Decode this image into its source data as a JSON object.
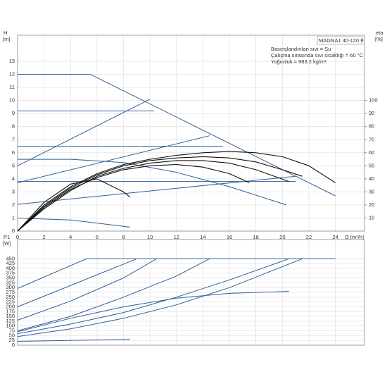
{
  "chart_data": [
    {
      "type": "line",
      "title": "MAGNA1 40-120 F",
      "annotations": [
        "Basınçlandırılan sıvı = Su",
        "Çalışma sırasında sıvı sıcaklığı = 60 °C",
        "Yoğunluk = 983.2 kg/m³"
      ],
      "x_label": "Q [m³/h]",
      "y_label": "H",
      "y_unit": "[m]",
      "y2_label": "eta",
      "y2_unit": "[%]",
      "xlim": [
        0,
        26.2
      ],
      "xticks": [
        0,
        2,
        4,
        6,
        8,
        10,
        12,
        14,
        16,
        18,
        20,
        22,
        24
      ],
      "ylim": [
        0,
        15
      ],
      "yticks": [
        0,
        1,
        2,
        3,
        4,
        5,
        6,
        7,
        8,
        9,
        10,
        11,
        12,
        13
      ],
      "y2lim": [
        0,
        150
      ],
      "y2ticks": [
        10,
        20,
        30,
        40,
        50,
        60,
        70,
        80,
        90,
        100
      ],
      "grid": true,
      "series": [
        {
          "color": "#2f5f9a",
          "x": [
            0,
            5.5,
            24
          ],
          "values": [
            12,
            12,
            2.7
          ]
        },
        {
          "color": "#2f5f9a",
          "x": [
            0,
            10
          ],
          "values": [
            5,
            10.1
          ]
        },
        {
          "color": "#2f5f9a",
          "x": [
            0,
            14.5
          ],
          "values": [
            3.7,
            7.3
          ]
        },
        {
          "color": "#2f5f9a",
          "x": [
            0,
            10.3
          ],
          "values": [
            9.2,
            9.2
          ]
        },
        {
          "color": "#2f5f9a",
          "x": [
            0,
            15.5
          ],
          "values": [
            6.5,
            6.5
          ]
        },
        {
          "color": "#2f5f9a",
          "x": [
            0,
            21
          ],
          "values": [
            3.8,
            3.8
          ]
        },
        {
          "color": "#2f5f9a",
          "x": [
            0,
            21
          ],
          "values": [
            2.05,
            4.2
          ]
        },
        {
          "color": "#2f5f9a",
          "x": [
            0,
            4,
            8,
            12,
            16,
            20.3
          ],
          "values": [
            5.5,
            5.5,
            5.25,
            4.5,
            3.4,
            2
          ]
        },
        {
          "color": "#2f5f9a",
          "x": [
            0,
            4,
            8.5
          ],
          "values": [
            1,
            0.85,
            0.3
          ]
        },
        {
          "color": "#111111",
          "axis": "y2",
          "x": [
            0,
            2,
            4,
            6,
            8,
            10,
            12,
            14,
            16,
            18,
            20,
            22,
            24
          ],
          "values": [
            0,
            20,
            34,
            44,
            51,
            55,
            58,
            60,
            61,
            60,
            57,
            50,
            37
          ]
        },
        {
          "color": "#111111",
          "axis": "y2",
          "x": [
            0,
            2,
            4,
            6,
            8,
            10,
            12,
            14,
            16,
            18,
            20,
            21.5
          ],
          "values": [
            0,
            19,
            33,
            43,
            50,
            54,
            56,
            57,
            56,
            53,
            47,
            42
          ]
        },
        {
          "color": "#111111",
          "axis": "y2",
          "x": [
            0,
            2,
            4,
            6,
            8,
            10,
            12,
            14,
            16,
            18,
            20.5
          ],
          "values": [
            0,
            17,
            31,
            42,
            48,
            52,
            54,
            54,
            52,
            47,
            38
          ]
        },
        {
          "color": "#111111",
          "axis": "y2",
          "x": [
            0,
            2,
            4,
            6,
            8,
            10,
            12,
            14,
            16,
            17.5
          ],
          "values": [
            0,
            18,
            32,
            41,
            47,
            50,
            51,
            49,
            44,
            37
          ]
        },
        {
          "color": "#111111",
          "axis": "y2",
          "x": [
            0,
            2,
            4,
            6,
            8,
            8.5
          ],
          "values": [
            0,
            22,
            36,
            40,
            30,
            26
          ]
        }
      ]
    },
    {
      "type": "line",
      "y_label": "P1",
      "y_unit": "[W]",
      "xlim": [
        0,
        26.2
      ],
      "xticks": [
        0,
        2,
        4,
        6,
        8,
        10,
        12,
        14,
        16,
        18,
        20,
        22,
        24
      ],
      "ylim": [
        0,
        550
      ],
      "yticks": [
        0,
        25,
        50,
        75,
        100,
        125,
        150,
        175,
        200,
        225,
        250,
        275,
        300,
        325,
        350,
        375,
        400,
        425,
        450
      ],
      "grid": true,
      "series": [
        {
          "color": "#2f5f9a",
          "x": [
            0,
            5.2,
            24
          ],
          "values": [
            295,
            450,
            450
          ]
        },
        {
          "color": "#2f5f9a",
          "x": [
            0,
            9
          ],
          "values": [
            200,
            450
          ]
        },
        {
          "color": "#2f5f9a",
          "x": [
            0,
            4,
            8,
            10.5
          ],
          "values": [
            130,
            230,
            350,
            450
          ]
        },
        {
          "color": "#2f5f9a",
          "x": [
            0,
            4,
            8,
            12,
            14.5
          ],
          "values": [
            75,
            150,
            250,
            360,
            450
          ]
        },
        {
          "color": "#2f5f9a",
          "x": [
            0,
            4,
            8,
            12,
            16,
            20.5
          ],
          "values": [
            60,
            110,
            170,
            250,
            340,
            450
          ]
        },
        {
          "color": "#2f5f9a",
          "x": [
            0,
            4,
            8,
            12,
            16,
            21.5
          ],
          "values": [
            45,
            85,
            140,
            210,
            300,
            450
          ]
        },
        {
          "color": "#2f5f9a",
          "x": [
            0,
            4,
            8,
            12,
            16,
            20.5
          ],
          "values": [
            70,
            140,
            200,
            245,
            270,
            280
          ]
        },
        {
          "color": "#2f5f9a",
          "x": [
            0,
            8.5
          ],
          "values": [
            20,
            30
          ]
        }
      ]
    }
  ]
}
